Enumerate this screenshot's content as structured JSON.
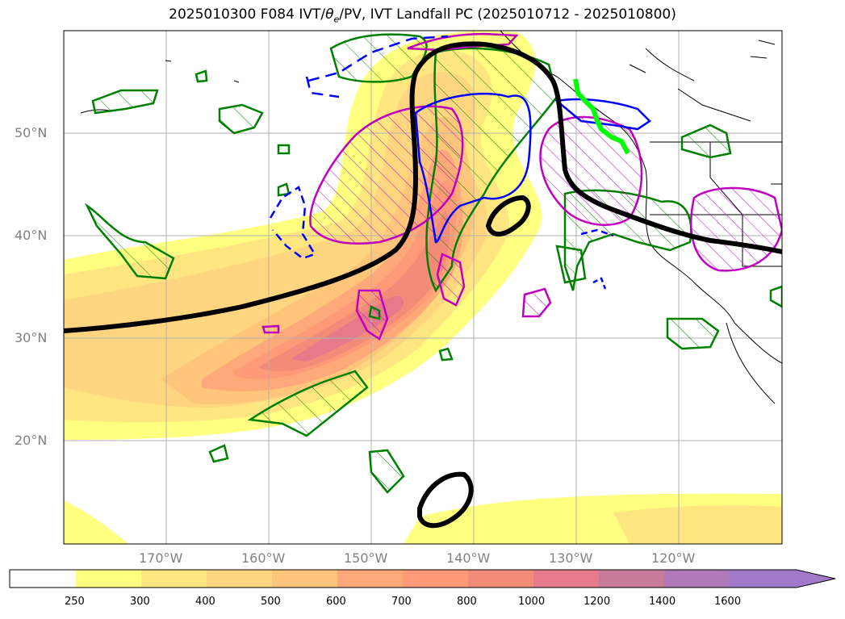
{
  "title": {
    "prefix": "2025010300 F084 IVT/",
    "theta": "θ",
    "theta_sub": "e",
    "suffix": "/PV, IVT Landfall PC (2025010712 - 2025010800)"
  },
  "map": {
    "lat_labels": [
      "50°N",
      "40°N",
      "30°N",
      "20°N"
    ],
    "lon_labels": [
      "170°W",
      "160°W",
      "150°W",
      "140°W",
      "130°W",
      "120°W"
    ]
  },
  "colorbar": {
    "levels": [
      "250",
      "300",
      "400",
      "500",
      "600",
      "700",
      "800",
      "1000",
      "1200",
      "1400",
      "1600"
    ],
    "colors": [
      "#ffffff",
      "#ffff80",
      "#ffe680",
      "#ffd580",
      "#ffc57a",
      "#ffa87a",
      "#ff9a78",
      "#f28b78",
      "#e67a8a",
      "#c77a9a",
      "#b07ab8",
      "#a07ac8"
    ]
  },
  "legend_colors": {
    "ivt_pc": "#000000",
    "theta_e": "#008000",
    "pv_positive": "#c000c0",
    "pv_negative": "#0000ff",
    "landfall": "#00ff00"
  }
}
